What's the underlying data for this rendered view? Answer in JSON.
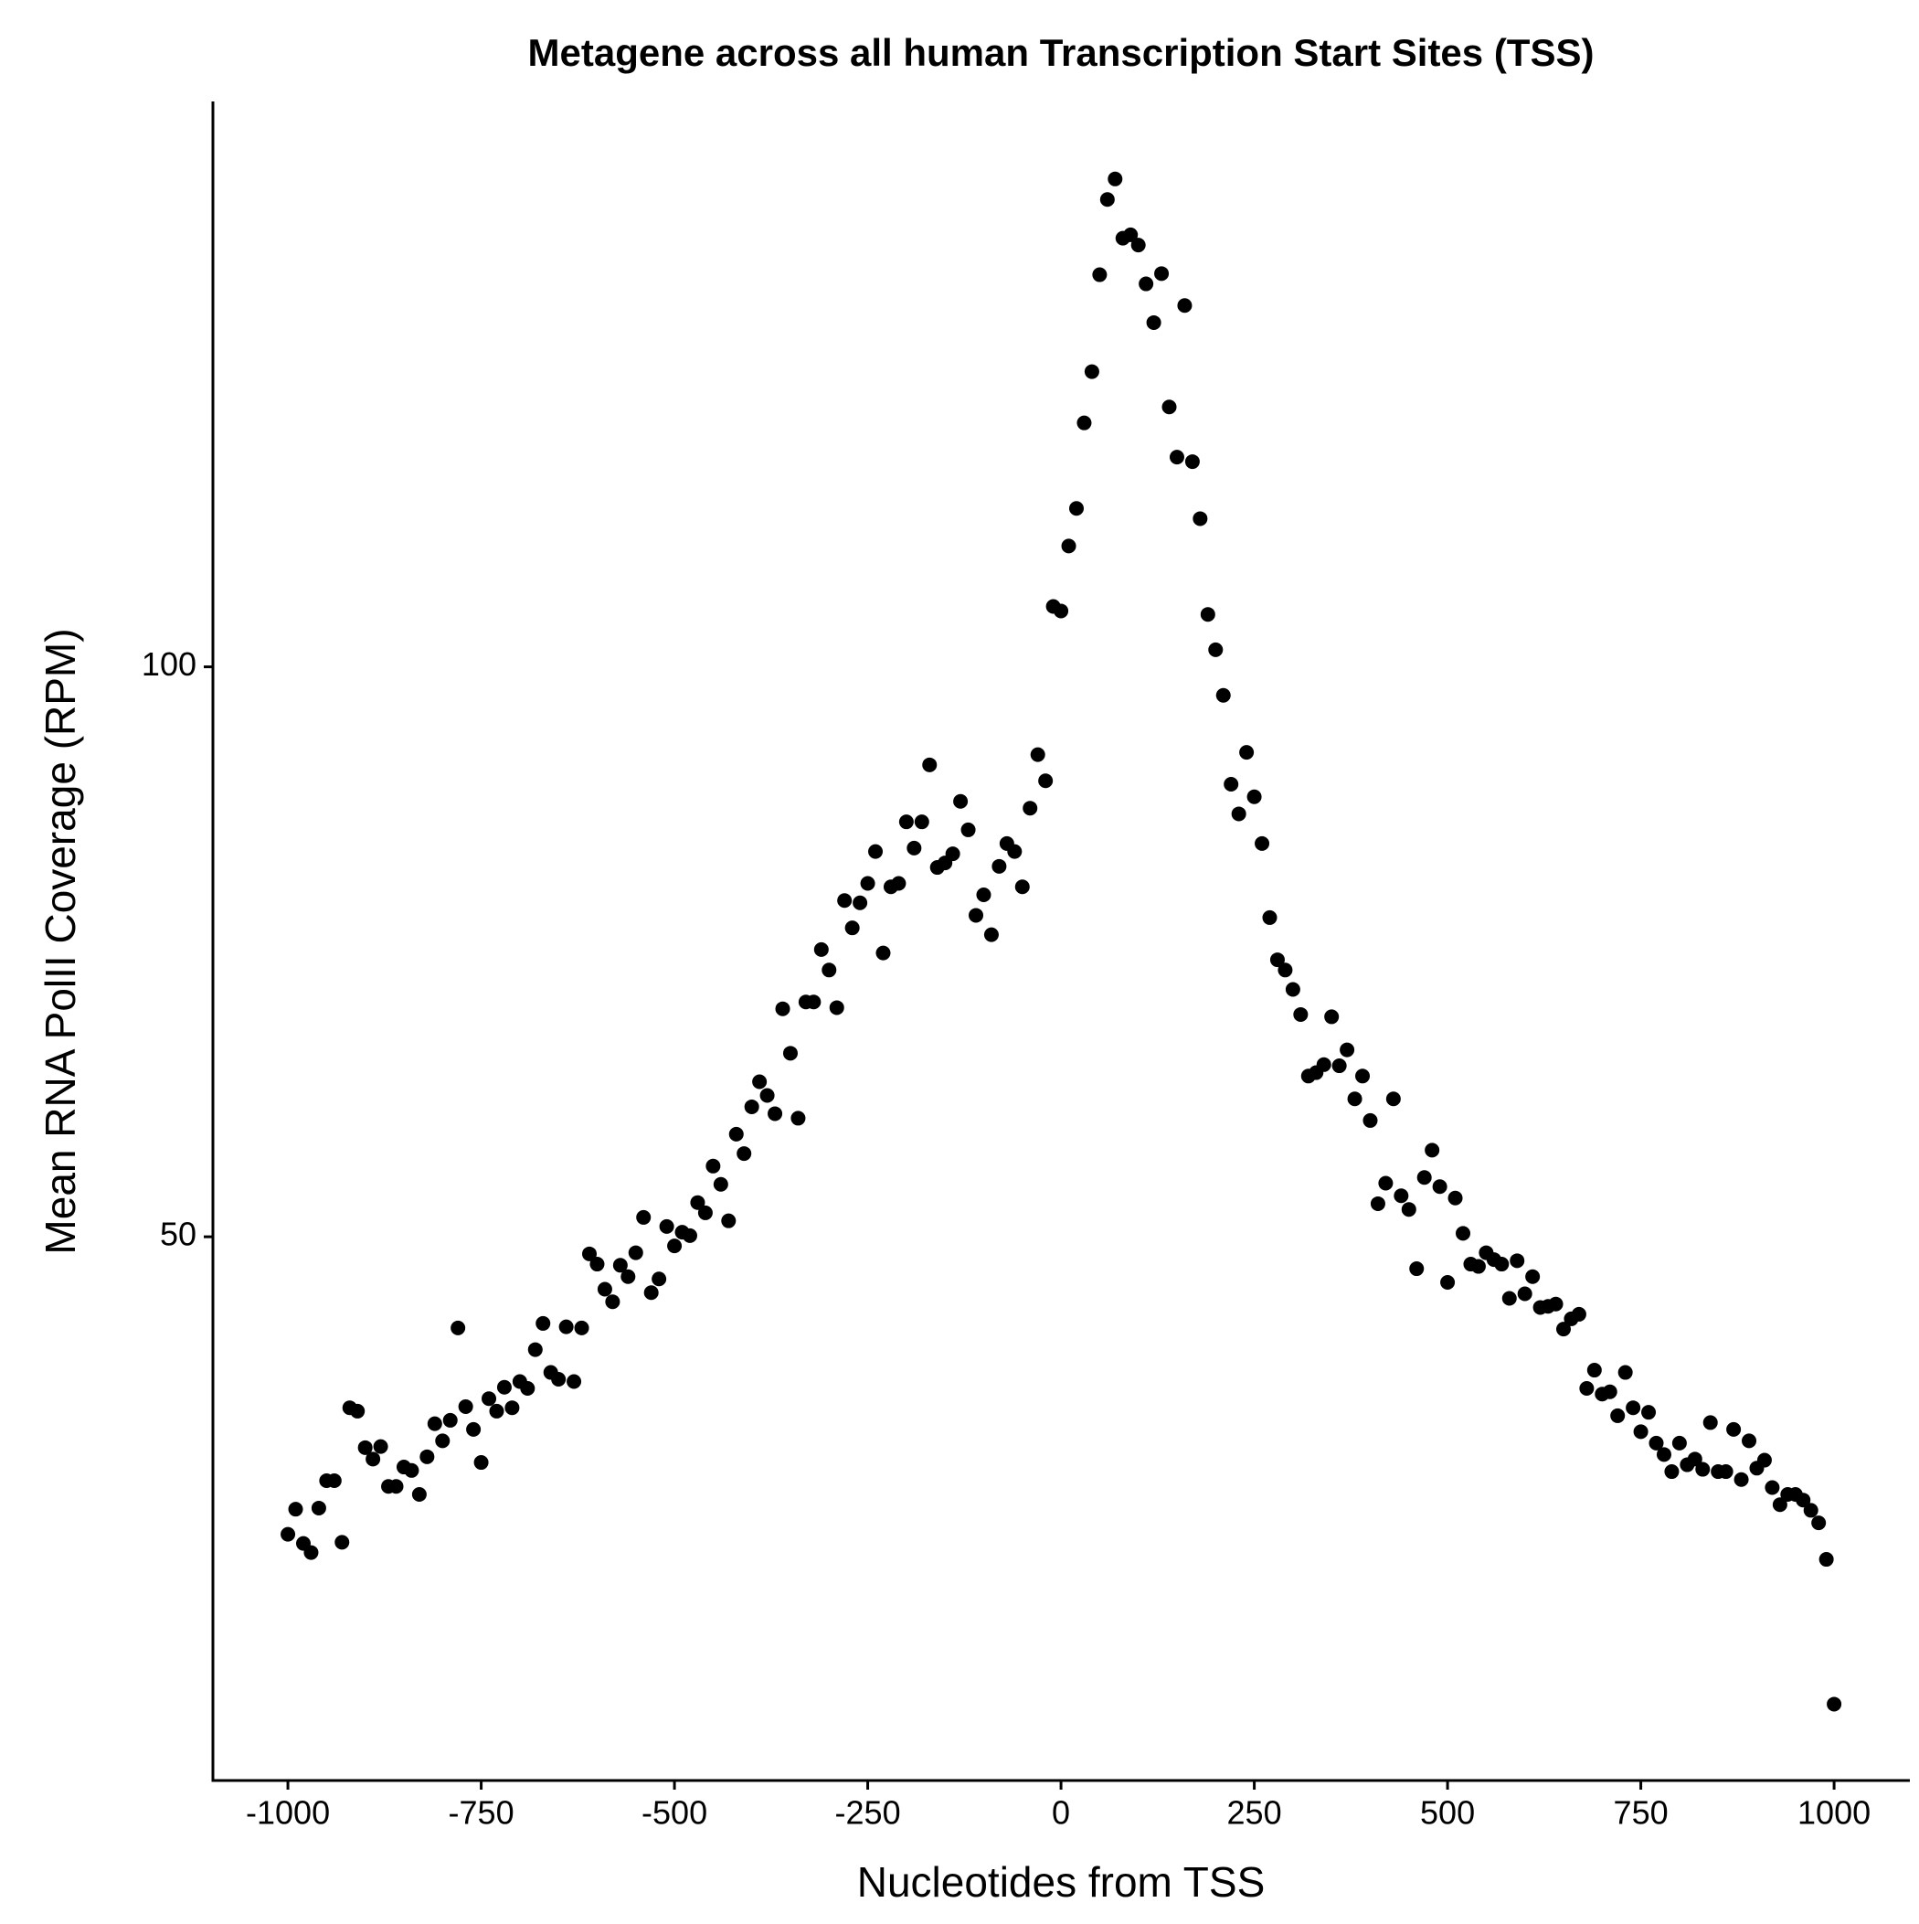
{
  "chart_data": {
    "type": "scatter",
    "title": "Metagene across all human Transcription Start Sites (TSS)",
    "x_label": "Nucleotides from TSS",
    "y_label": "Mean RNA PolII Coverage (RPM)",
    "color": "#000000",
    "grid": false,
    "xlim": [
      -1097,
      1098
    ],
    "ylim": [
      2.3,
      149.6
    ],
    "xticks": [
      -1000,
      -750,
      -500,
      -250,
      0,
      250,
      500,
      750,
      1000
    ],
    "yticks": [
      50,
      100
    ],
    "x": [
      -1000,
      -990,
      -980,
      -970,
      -960,
      -950,
      -940,
      -930,
      -920,
      -910,
      -900,
      -890,
      -880,
      -870,
      -860,
      -850,
      -840,
      -830,
      -820,
      -810,
      -800,
      -790,
      -780,
      -770,
      -760,
      -750,
      -740,
      -730,
      -720,
      -710,
      -700,
      -690,
      -680,
      -670,
      -660,
      -650,
      -640,
      -630,
      -620,
      -610,
      -600,
      -590,
      -580,
      -570,
      -560,
      -550,
      -540,
      -530,
      -520,
      -510,
      -500,
      -490,
      -480,
      -470,
      -460,
      -450,
      -440,
      -430,
      -420,
      -410,
      -400,
      -390,
      -380,
      -370,
      -360,
      -350,
      -340,
      -330,
      -320,
      -310,
      -300,
      -290,
      -280,
      -270,
      -260,
      -250,
      -240,
      -230,
      -220,
      -210,
      -200,
      -190,
      -180,
      -170,
      -160,
      -150,
      -140,
      -130,
      -120,
      -110,
      -100,
      -90,
      -80,
      -70,
      -60,
      -50,
      -40,
      -30,
      -20,
      -10,
      0,
      10,
      20,
      30,
      40,
      50,
      60,
      70,
      80,
      90,
      100,
      110,
      120,
      130,
      140,
      150,
      160,
      170,
      180,
      190,
      200,
      210,
      220,
      230,
      240,
      250,
      260,
      270,
      280,
      290,
      300,
      310,
      320,
      330,
      340,
      350,
      360,
      370,
      380,
      390,
      400,
      410,
      420,
      430,
      440,
      450,
      460,
      470,
      480,
      490,
      500,
      510,
      520,
      530,
      540,
      550,
      560,
      570,
      580,
      590,
      600,
      610,
      620,
      630,
      640,
      650,
      660,
      670,
      680,
      690,
      700,
      710,
      720,
      730,
      740,
      750,
      760,
      770,
      780,
      790,
      800,
      810,
      820,
      830,
      840,
      850,
      860,
      870,
      880,
      890,
      900,
      910,
      920,
      930,
      940,
      950,
      960,
      970,
      980,
      990,
      1000
    ],
    "values": [
      23.9,
      26.1,
      23.1,
      22.3,
      26.2,
      28.6,
      28.6,
      23.2,
      35.0,
      34.7,
      31.5,
      30.5,
      31.6,
      28.1,
      28.1,
      29.8,
      29.5,
      27.4,
      30.7,
      33.6,
      32.1,
      33.9,
      42.0,
      35.1,
      33.1,
      30.2,
      35.8,
      34.7,
      36.8,
      35.0,
      37.3,
      36.7,
      40.1,
      42.4,
      38.1,
      37.5,
      42.1,
      37.3,
      42.0,
      48.5,
      47.6,
      45.4,
      44.3,
      47.5,
      46.5,
      48.6,
      51.7,
      45.1,
      46.3,
      50.9,
      49.2,
      50.4,
      50.1,
      53.0,
      52.1,
      56.2,
      54.6,
      51.4,
      59.0,
      57.3,
      61.4,
      63.6,
      62.4,
      60.8,
      70.0,
      66.1,
      60.4,
      70.6,
      70.6,
      75.2,
      73.4,
      70.1,
      79.5,
      77.1,
      79.3,
      81.0,
      83.8,
      74.9,
      80.7,
      81.0,
      86.4,
      84.1,
      86.4,
      91.4,
      82.4,
      82.8,
      83.6,
      88.2,
      85.7,
      78.2,
      80.0,
      76.5,
      82.5,
      84.5,
      83.8,
      80.7,
      87.6,
      92.3,
      90.0,
      105.3,
      104.9,
      110.6,
      113.9,
      121.4,
      125.9,
      134.4,
      141.0,
      142.8,
      137.6,
      137.9,
      137.0,
      133.6,
      130.2,
      134.5,
      122.8,
      118.4,
      131.7,
      118.0,
      113.0,
      104.6,
      101.5,
      97.5,
      89.7,
      87.1,
      92.5,
      88.6,
      84.5,
      78.0,
      74.3,
      73.4,
      71.7,
      69.5,
      64.1,
      64.4,
      65.1,
      69.3,
      65.0,
      66.4,
      62.1,
      64.1,
      60.2,
      52.9,
      54.7,
      62.1,
      53.6,
      52.4,
      47.2,
      55.2,
      57.6,
      54.4,
      46.0,
      53.4,
      50.3,
      47.6,
      47.4,
      48.6,
      48.0,
      47.6,
      44.6,
      47.9,
      45.0,
      46.5,
      43.8,
      43.9,
      44.1,
      41.9,
      42.8,
      43.2,
      36.7,
      38.3,
      36.2,
      36.4,
      34.3,
      38.1,
      35.0,
      32.9,
      34.6,
      31.9,
      30.9,
      29.4,
      31.9,
      30.0,
      30.5,
      29.6,
      33.7,
      29.4,
      29.4,
      33.1,
      28.7,
      32.1,
      29.7,
      30.4,
      28.0,
      26.5,
      27.4,
      27.4,
      26.9,
      26.0,
      24.9,
      21.7,
      9.0
    ]
  }
}
